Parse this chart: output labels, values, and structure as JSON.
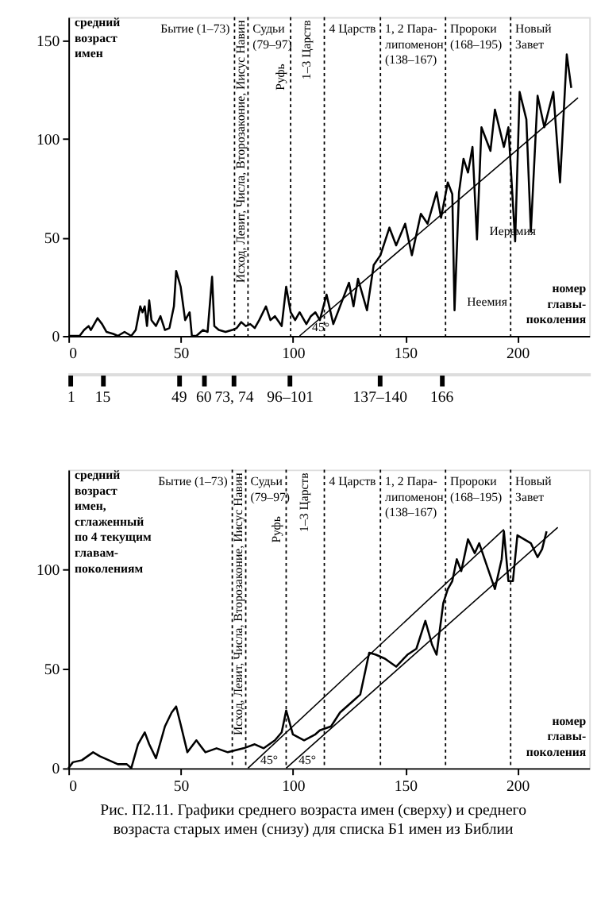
{
  "chart_data": [
    {
      "type": "line",
      "ylabel": "средний\nвозраст\nимен",
      "xlabel": "номер\nглавы-\nпоколения",
      "xlim": [
        0,
        232
      ],
      "ylim": [
        0,
        162
      ],
      "xticks": [
        0,
        50,
        100,
        150,
        200
      ],
      "yticks": [
        0,
        50,
        100,
        150
      ],
      "grid": false,
      "x2lim": [
        0,
        232
      ],
      "x2ticks": [
        1,
        15,
        49,
        60,
        {
          "value": 73.5,
          "label": "73, 74"
        },
        {
          "value": 98.5,
          "label": "96–101"
        },
        {
          "value": 138.5,
          "label": "137–140"
        },
        166
      ],
      "series": [
        {
          "color": "#000000",
          "x": [
            0,
            5,
            7,
            9,
            10,
            13,
            15,
            17,
            20,
            22,
            25,
            28,
            30,
            32,
            33,
            34,
            35,
            36,
            37,
            39,
            41,
            43,
            45,
            47,
            48,
            50,
            52,
            54,
            55,
            57,
            60,
            62,
            64,
            65,
            67,
            70,
            73,
            75,
            77,
            79,
            81,
            83,
            85,
            88,
            90,
            92,
            95,
            97,
            99,
            101,
            103,
            105,
            106,
            108,
            110,
            112,
            115,
            118,
            122,
            125,
            127,
            129,
            133,
            136,
            139,
            143,
            146,
            150,
            153,
            157,
            160,
            164,
            166,
            169,
            171,
            172,
            174,
            176,
            178,
            180,
            182,
            184,
            188,
            190,
            194,
            196,
            199,
            201,
            204,
            206,
            209,
            212,
            216,
            219,
            222,
            224
          ],
          "values": [
            0,
            0,
            3,
            5,
            3,
            9,
            6,
            2,
            1,
            0,
            2,
            0,
            3,
            15,
            12,
            15,
            5,
            18,
            8,
            5,
            10,
            3,
            4,
            15,
            33,
            25,
            8,
            12,
            0,
            0,
            3,
            2,
            30,
            5,
            3,
            2,
            3,
            4,
            7,
            5,
            6,
            4,
            8,
            15,
            8,
            10,
            5,
            25,
            12,
            8,
            12,
            8,
            6,
            10,
            12,
            8,
            21,
            6,
            18,
            27,
            15,
            29,
            13,
            36,
            41,
            55,
            46,
            57,
            41,
            62,
            57,
            73,
            60,
            78,
            72,
            13,
            73,
            90,
            83,
            96,
            49,
            106,
            94,
            115,
            96,
            106,
            48,
            124,
            110,
            53,
            122,
            106,
            124,
            78,
            143,
            126
          ]
        },
        {
          "type": "line",
          "color": "#000000",
          "x": [
            103,
            227
          ],
          "values": [
            0,
            121
          ]
        }
      ],
      "ref_lines": [
        {
          "axis": "x",
          "value": 74,
          "line_style": "dotted"
        },
        {
          "axis": "x",
          "value": 80,
          "line_style": "dotted"
        },
        {
          "axis": "x",
          "value": 99,
          "label": "Руфь",
          "line_style": "dotted"
        },
        {
          "axis": "x",
          "value": 114,
          "line_style": "dotted"
        },
        {
          "axis": "x",
          "value": 139,
          "line_style": "dotted"
        },
        {
          "axis": "x",
          "value": 168,
          "line_style": "dotted"
        },
        {
          "axis": "x",
          "value": 197,
          "line_style": "dotted"
        }
      ],
      "annotations": [
        "Бытие (1–73)",
        "Исход, Левит, Числа, Второзаконие, Иисус Навин",
        "Судьи\n(79–97)",
        "1–3 Царств",
        "4 Царств",
        "1, 2 Пара-\nлипоменон\n(138–167)",
        "Пророки\n(168–195)",
        "Новый\nЗавет",
        {
          "text": "Иеремия",
          "x": 182,
          "y": 49
        },
        {
          "text": "Неемия",
          "x": 172,
          "y": 13
        },
        {
          "text": "45°",
          "x": 103,
          "y": 0
        }
      ]
    },
    {
      "type": "line",
      "ylabel": "средний\nвозраст\nимен,\nсглаженный\nпо 4 текущим\nглавам-\nпоколениям",
      "xlabel": "номер\nглавы-\nпоколения",
      "xlim": [
        0,
        232
      ],
      "ylim": [
        0,
        150
      ],
      "xticks": [
        0,
        50,
        100,
        150,
        200
      ],
      "yticks": [
        0,
        50,
        100
      ],
      "grid": false,
      "series": [
        {
          "color": "#000000",
          "x": [
            0,
            2,
            6,
            11,
            14,
            18,
            22,
            26,
            28,
            31,
            34,
            36,
            39,
            43,
            46,
            48,
            50,
            53,
            57,
            61,
            66,
            71,
            78,
            83,
            87,
            92,
            95,
            97,
            100,
            105,
            110,
            112,
            117,
            121,
            126,
            130,
            134,
            137,
            141,
            146,
            151,
            155,
            159,
            162,
            164,
            167,
            169,
            171,
            173,
            175,
            178,
            181,
            183,
            186,
            190,
            193,
            194,
            196,
            198,
            200,
            203,
            206,
            209,
            211,
            213
          ],
          "values": [
            0,
            3,
            4,
            8,
            6,
            4,
            2,
            2,
            0,
            12,
            18,
            12,
            5,
            21,
            28,
            31,
            22,
            8,
            14,
            8,
            10,
            8,
            10,
            12,
            10,
            14,
            18,
            29,
            17,
            14,
            17,
            19,
            21,
            28,
            33,
            37,
            58,
            57,
            55,
            51,
            57,
            60,
            74,
            62,
            57,
            83,
            90,
            94,
            105,
            99,
            115,
            108,
            113,
            103,
            90,
            105,
            119,
            94,
            94,
            117,
            115,
            113,
            106,
            110,
            119
          ]
        },
        {
          "type": "line",
          "color": "#000000",
          "x": [
            80,
            194
          ],
          "values": [
            0,
            120
          ]
        },
        {
          "type": "line",
          "color": "#000000",
          "x": [
            97,
            218
          ],
          "values": [
            0,
            121
          ]
        }
      ],
      "ref_lines": [
        {
          "axis": "x",
          "value": 73,
          "line_style": "dotted"
        },
        {
          "axis": "x",
          "value": 79,
          "line_style": "dotted"
        },
        {
          "axis": "x",
          "value": 97,
          "label": "Руфь",
          "line_style": "dotted"
        },
        {
          "axis": "x",
          "value": 114,
          "line_style": "dotted"
        },
        {
          "axis": "x",
          "value": 139,
          "line_style": "dotted"
        },
        {
          "axis": "x",
          "value": 168,
          "line_style": "dotted"
        },
        {
          "axis": "x",
          "value": 197,
          "line_style": "dotted"
        }
      ],
      "annotations": [
        "Бытие (1–73)",
        "Исход, Левит, Числа, Второзаконие, Иисус Навин",
        "Судьи\n(79–97)",
        "1–3 Царств",
        "4 Царств",
        "1, 2 Пара-\nлипоменон\n(138–167)",
        "Пророки\n(168–195)",
        "Новый\nЗавет",
        {
          "text": "45°",
          "x": 80,
          "y": 0
        },
        {
          "text": "45°",
          "x": 97,
          "y": 0
        },
        "Рис. П2.11. Графики среднего возраста имен (сверху) и среднего\nвозраста старых имен (снизу) для списка Б1 имен из Библии"
      ]
    }
  ]
}
